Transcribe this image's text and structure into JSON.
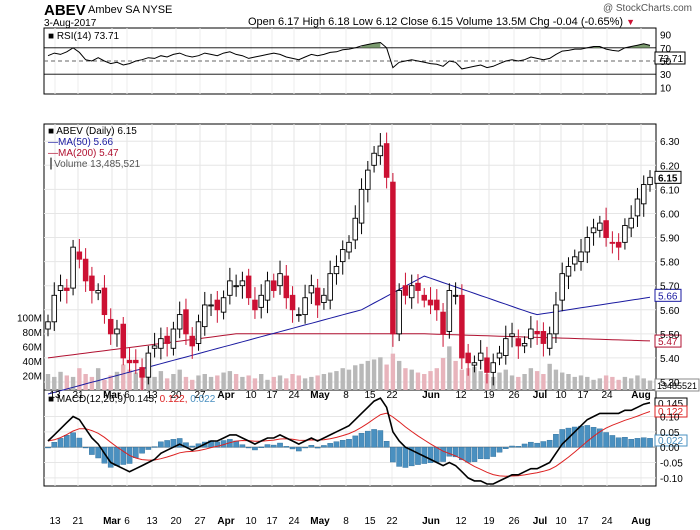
{
  "header": {
    "ticker": "ABEV",
    "company": "Ambev SA",
    "exchange": "NYSE",
    "date": "3-Aug-2017",
    "brand": "@ StockCharts.com",
    "labels": {
      "open": "Open",
      "high": "High",
      "low": "Low",
      "close": "Close",
      "volume": "Volume",
      "chg": "Chg"
    },
    "open": "6.17",
    "high": "6.18",
    "low": "6.12",
    "close": "6.15",
    "volume": "13.5M",
    "chg": "-0.04 (-0.65%)"
  },
  "colors": {
    "up": "#000000",
    "down": "#cc1133",
    "ma50": "#1a1aa0",
    "ma200": "#b01030",
    "volume": "#b8b8b8",
    "volume_down": "#e8b4bc",
    "rsi_fill": "#7a9a6e",
    "macd_hist": "#4a90c0",
    "signal": "#dd2222"
  },
  "x_axis": {
    "ticks": [
      "13",
      "21",
      "Mar",
      "6",
      "13",
      "20",
      "27",
      "Apr",
      "10",
      "17",
      "24",
      "May",
      "8",
      "15",
      "22",
      "Jun",
      "12",
      "19",
      "26",
      "Jul",
      "10",
      "17",
      "24",
      "Aug"
    ],
    "bold": [
      "Mar",
      "Apr",
      "May",
      "Jun",
      "Jul",
      "Aug"
    ]
  },
  "rsi_panel": {
    "legend": "RSI(14) 73.71",
    "value_label": "73.71",
    "ticks": [
      "90",
      "70",
      "50",
      "30",
      "10"
    ]
  },
  "price_panel": {
    "legend": [
      "ABEV (Daily) 6.15",
      "MA(50) 5.66",
      "MA(200) 5.47",
      "Volume 13,485,521"
    ],
    "price_ticks": [
      "6.30",
      "6.20",
      "6.10",
      "6.00",
      "5.90",
      "5.80",
      "5.70",
      "5.60",
      "5.50",
      "5.40",
      "5.30"
    ],
    "vol_ticks": [
      "100M",
      "80M",
      "60M",
      "40M",
      "20M"
    ],
    "last_label": "6.15",
    "ma50_label": "5.66",
    "ma200_label": "5.47",
    "vol_label": "13485521"
  },
  "macd_panel": {
    "legend_parts": [
      "MACD(12,26,9)",
      "0.145,",
      "0.122,",
      "0.022"
    ],
    "ticks": [
      "0.10",
      "0.05",
      "0.00",
      "-0.05",
      "-0.10"
    ],
    "labels": [
      "0.145",
      "0.122",
      "0.022"
    ]
  },
  "chart_data": {
    "type": "candlestick",
    "title": "ABEV Ambev SA NYSE",
    "price_ylim": [
      5.3,
      6.33
    ],
    "ohlc_close": [
      5.55,
      5.66,
      5.7,
      5.68,
      5.86,
      5.81,
      5.72,
      5.68,
      5.68,
      5.58,
      5.5,
      5.52,
      5.4,
      5.38,
      5.38,
      5.32,
      5.42,
      5.45,
      5.48,
      5.46,
      5.52,
      5.58,
      5.5,
      5.45,
      5.55,
      5.62,
      5.62,
      5.6,
      5.65,
      5.72,
      5.7,
      5.72,
      5.65,
      5.6,
      5.66,
      5.72,
      5.68,
      5.75,
      5.65,
      5.6,
      5.58,
      5.65,
      5.7,
      5.62,
      5.66,
      5.75,
      5.78,
      5.85,
      5.88,
      5.98,
      6.1,
      6.18,
      6.25,
      6.28,
      6.15,
      5.5,
      5.68,
      5.66,
      5.7,
      5.68,
      5.64,
      5.62,
      5.6,
      5.5,
      5.68,
      5.66,
      5.4,
      5.38,
      5.38,
      5.42,
      5.34,
      5.38,
      5.42,
      5.48,
      5.5,
      5.45,
      5.46,
      5.52,
      5.5,
      5.46,
      5.5,
      5.62,
      5.75,
      5.78,
      5.82,
      5.84,
      5.9,
      5.94,
      5.96,
      5.9,
      5.88,
      5.86,
      5.95,
      5.98,
      6.06,
      6.12,
      6.15
    ],
    "macd_ylim": [
      -0.12,
      0.17
    ],
    "rsi_ylim": [
      0,
      100
    ],
    "volume_max_M": 110,
    "last_close": 6.15,
    "ma50": 5.66,
    "ma200": 5.47,
    "rsi14": 73.71,
    "macd": 0.145,
    "macd_signal": 0.122,
    "macd_hist": 0.022
  }
}
